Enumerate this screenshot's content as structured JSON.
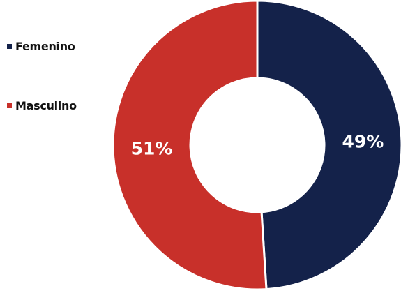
{
  "chart_data": {
    "type": "pie",
    "variant": "donut",
    "categories": [
      "Femenino",
      "Masculino"
    ],
    "values": [
      49,
      51
    ],
    "data_labels": [
      "49%",
      "51%"
    ],
    "colors": [
      "#14224a",
      "#c8302a"
    ],
    "legend_placement": "left",
    "start_angle_deg": 0,
    "direction": "clockwise"
  },
  "legend": {
    "items": [
      {
        "label": "Femenino",
        "color": "#14224a"
      },
      {
        "label": "Masculino",
        "color": "#c8302a"
      }
    ]
  }
}
